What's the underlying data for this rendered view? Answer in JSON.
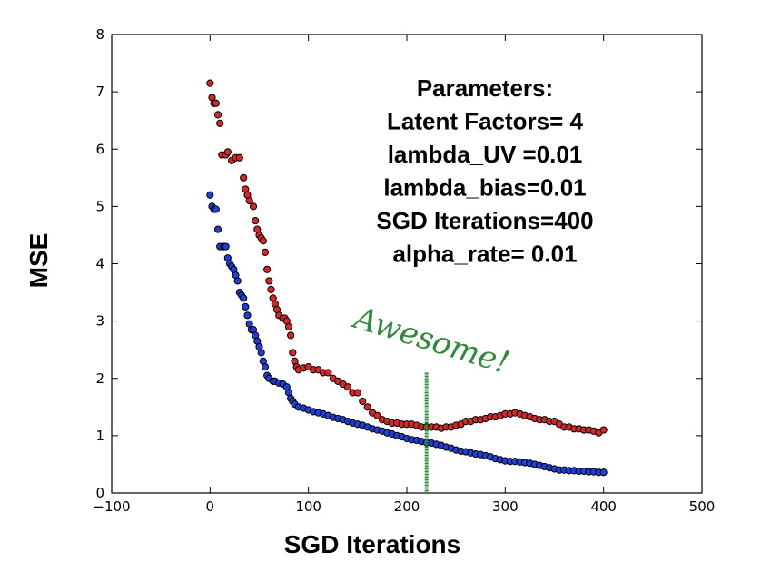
{
  "chart_data": {
    "type": "scatter",
    "title": "",
    "xlabel": "SGD Iterations",
    "ylabel": "MSE",
    "xlim": [
      -100,
      500
    ],
    "ylim": [
      0,
      8
    ],
    "xticks": [
      "−100",
      "0",
      "100",
      "200",
      "300",
      "400",
      "500"
    ],
    "yticks": [
      "0",
      "1",
      "2",
      "3",
      "4",
      "5",
      "6",
      "7",
      "8"
    ],
    "grid": false,
    "legend": "none",
    "annotation_lines": [
      "Parameters:",
      "Latent Factors= 4",
      "lambda_UV =0.01",
      "lambda_bias=0.01",
      "SGD Iterations=400",
      "alpha_rate= 0.01"
    ],
    "handwritten_note": "Awesome!",
    "vertical_marker_x": 220,
    "vertical_marker_ymax": 2.1,
    "colors": {
      "series_red": "#d62728",
      "series_blue": "#1f3fd6",
      "marker_edge": "#000000",
      "handwriting": "#2e8b3a"
    },
    "series": [
      {
        "color": "red",
        "points": [
          [
            0,
            7.15
          ],
          [
            2,
            6.9
          ],
          [
            4,
            6.8
          ],
          [
            6,
            6.8
          ],
          [
            8,
            6.6
          ],
          [
            10,
            6.45
          ],
          [
            12,
            5.9
          ],
          [
            16,
            5.9
          ],
          [
            18,
            5.95
          ],
          [
            22,
            5.8
          ],
          [
            26,
            5.85
          ],
          [
            30,
            5.85
          ],
          [
            34,
            5.5
          ],
          [
            36,
            5.3
          ],
          [
            38,
            5.2
          ],
          [
            40,
            5.1
          ],
          [
            44,
            5.0
          ],
          [
            46,
            4.75
          ],
          [
            48,
            4.6
          ],
          [
            50,
            4.5
          ],
          [
            52,
            4.45
          ],
          [
            54,
            4.4
          ],
          [
            56,
            4.2
          ],
          [
            58,
            3.9
          ],
          [
            60,
            3.7
          ],
          [
            62,
            3.55
          ],
          [
            64,
            3.4
          ],
          [
            66,
            3.3
          ],
          [
            68,
            3.2
          ],
          [
            70,
            3.1
          ],
          [
            74,
            3.05
          ],
          [
            76,
            3.05
          ],
          [
            78,
            3.0
          ],
          [
            80,
            2.9
          ],
          [
            82,
            2.75
          ],
          [
            84,
            2.45
          ],
          [
            86,
            2.3
          ],
          [
            88,
            2.2
          ],
          [
            90,
            2.15
          ],
          [
            95,
            2.18
          ],
          [
            100,
            2.2
          ],
          [
            105,
            2.15
          ],
          [
            110,
            2.15
          ],
          [
            115,
            2.1
          ],
          [
            120,
            2.1
          ],
          [
            125,
            2.0
          ],
          [
            130,
            1.95
          ],
          [
            135,
            1.9
          ],
          [
            140,
            1.85
          ],
          [
            145,
            1.75
          ],
          [
            150,
            1.75
          ],
          [
            155,
            1.6
          ],
          [
            160,
            1.5
          ],
          [
            165,
            1.4
          ],
          [
            170,
            1.35
          ],
          [
            175,
            1.28
          ],
          [
            180,
            1.25
          ],
          [
            185,
            1.22
          ],
          [
            190,
            1.22
          ],
          [
            195,
            1.2
          ],
          [
            200,
            1.2
          ],
          [
            205,
            1.2
          ],
          [
            210,
            1.18
          ],
          [
            215,
            1.15
          ],
          [
            220,
            1.15
          ],
          [
            225,
            1.15
          ],
          [
            230,
            1.15
          ],
          [
            235,
            1.13
          ],
          [
            240,
            1.15
          ],
          [
            245,
            1.15
          ],
          [
            250,
            1.18
          ],
          [
            255,
            1.2
          ],
          [
            260,
            1.25
          ],
          [
            265,
            1.25
          ],
          [
            270,
            1.28
          ],
          [
            275,
            1.28
          ],
          [
            280,
            1.3
          ],
          [
            285,
            1.33
          ],
          [
            290,
            1.33
          ],
          [
            295,
            1.35
          ],
          [
            300,
            1.38
          ],
          [
            305,
            1.38
          ],
          [
            310,
            1.4
          ],
          [
            315,
            1.38
          ],
          [
            320,
            1.35
          ],
          [
            325,
            1.33
          ],
          [
            330,
            1.3
          ],
          [
            335,
            1.28
          ],
          [
            340,
            1.28
          ],
          [
            345,
            1.25
          ],
          [
            350,
            1.25
          ],
          [
            355,
            1.2
          ],
          [
            360,
            1.15
          ],
          [
            365,
            1.15
          ],
          [
            370,
            1.12
          ],
          [
            375,
            1.12
          ],
          [
            380,
            1.1
          ],
          [
            385,
            1.1
          ],
          [
            390,
            1.08
          ],
          [
            395,
            1.05
          ],
          [
            400,
            1.1
          ]
        ]
      },
      {
        "color": "blue",
        "points": [
          [
            0,
            5.2
          ],
          [
            2,
            5.0
          ],
          [
            4,
            4.95
          ],
          [
            6,
            4.95
          ],
          [
            8,
            4.6
          ],
          [
            10,
            4.3
          ],
          [
            14,
            4.3
          ],
          [
            16,
            4.3
          ],
          [
            18,
            4.1
          ],
          [
            20,
            4.0
          ],
          [
            22,
            3.95
          ],
          [
            24,
            3.9
          ],
          [
            26,
            3.8
          ],
          [
            28,
            3.7
          ],
          [
            30,
            3.5
          ],
          [
            32,
            3.45
          ],
          [
            34,
            3.4
          ],
          [
            36,
            3.25
          ],
          [
            38,
            3.1
          ],
          [
            40,
            2.95
          ],
          [
            42,
            2.85
          ],
          [
            44,
            2.85
          ],
          [
            46,
            2.75
          ],
          [
            48,
            2.65
          ],
          [
            50,
            2.55
          ],
          [
            52,
            2.45
          ],
          [
            54,
            2.3
          ],
          [
            56,
            2.2
          ],
          [
            58,
            2.05
          ],
          [
            60,
            2.0
          ],
          [
            64,
            1.95
          ],
          [
            66,
            1.95
          ],
          [
            70,
            1.92
          ],
          [
            74,
            1.9
          ],
          [
            78,
            1.85
          ],
          [
            80,
            1.75
          ],
          [
            82,
            1.65
          ],
          [
            84,
            1.6
          ],
          [
            86,
            1.55
          ],
          [
            90,
            1.5
          ],
          [
            95,
            1.48
          ],
          [
            100,
            1.45
          ],
          [
            105,
            1.42
          ],
          [
            110,
            1.4
          ],
          [
            115,
            1.38
          ],
          [
            120,
            1.35
          ],
          [
            125,
            1.32
          ],
          [
            130,
            1.3
          ],
          [
            135,
            1.28
          ],
          [
            140,
            1.25
          ],
          [
            145,
            1.22
          ],
          [
            150,
            1.2
          ],
          [
            155,
            1.18
          ],
          [
            160,
            1.15
          ],
          [
            165,
            1.12
          ],
          [
            170,
            1.1
          ],
          [
            175,
            1.08
          ],
          [
            180,
            1.05
          ],
          [
            185,
            1.03
          ],
          [
            190,
            1.0
          ],
          [
            195,
            0.98
          ],
          [
            200,
            0.95
          ],
          [
            205,
            0.93
          ],
          [
            210,
            0.92
          ],
          [
            215,
            0.9
          ],
          [
            220,
            0.88
          ],
          [
            225,
            0.87
          ],
          [
            230,
            0.85
          ],
          [
            235,
            0.83
          ],
          [
            240,
            0.8
          ],
          [
            245,
            0.78
          ],
          [
            250,
            0.75
          ],
          [
            255,
            0.73
          ],
          [
            260,
            0.72
          ],
          [
            265,
            0.7
          ],
          [
            270,
            0.68
          ],
          [
            275,
            0.67
          ],
          [
            280,
            0.65
          ],
          [
            285,
            0.63
          ],
          [
            290,
            0.6
          ],
          [
            295,
            0.58
          ],
          [
            300,
            0.56
          ],
          [
            305,
            0.55
          ],
          [
            310,
            0.55
          ],
          [
            315,
            0.54
          ],
          [
            320,
            0.53
          ],
          [
            325,
            0.52
          ],
          [
            330,
            0.5
          ],
          [
            335,
            0.48
          ],
          [
            340,
            0.46
          ],
          [
            345,
            0.44
          ],
          [
            350,
            0.42
          ],
          [
            355,
            0.4
          ],
          [
            360,
            0.4
          ],
          [
            365,
            0.39
          ],
          [
            370,
            0.39
          ],
          [
            375,
            0.38
          ],
          [
            380,
            0.38
          ],
          [
            385,
            0.37
          ],
          [
            390,
            0.37
          ],
          [
            395,
            0.36
          ],
          [
            400,
            0.36
          ]
        ]
      }
    ]
  }
}
